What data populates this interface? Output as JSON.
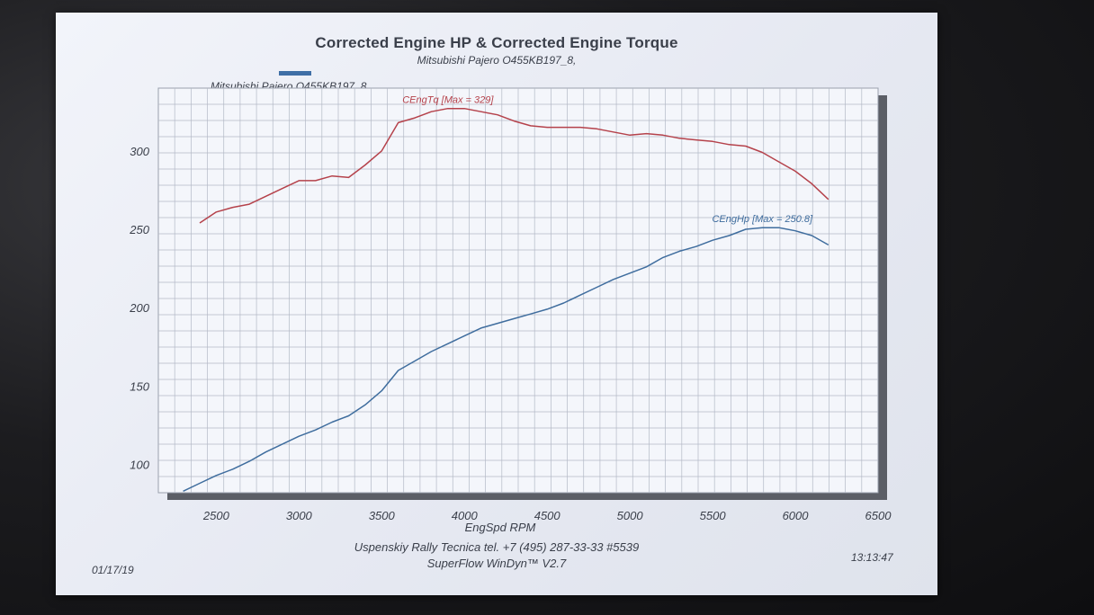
{
  "chart_data": {
    "type": "line",
    "title": "Corrected Engine HP & Corrected Engine Torque",
    "subtitle": "Mitsubishi Pajero O455KB197_8,",
    "legend": [
      {
        "label": "Mitsubishi Pajero O455KB197_8",
        "color": "#3f6fa6"
      }
    ],
    "xlabel": "EngSpd  RPM",
    "xlim": [
      2150,
      6500
    ],
    "ylim": [
      82,
      340
    ],
    "x_ticks": [
      2500,
      3000,
      3500,
      4000,
      4500,
      5000,
      5500,
      6000,
      6500
    ],
    "y_ticks": [
      100,
      150,
      200,
      250,
      300
    ],
    "grid": true,
    "series": [
      {
        "name": "CEngTq",
        "color": "#b5424b",
        "annotation": "CEngTq [Max = 329]",
        "x": [
          2400,
          2500,
          2600,
          2700,
          2800,
          2900,
          3000,
          3100,
          3200,
          3300,
          3400,
          3500,
          3600,
          3700,
          3800,
          3900,
          4000,
          4100,
          4200,
          4300,
          4400,
          4500,
          4600,
          4700,
          4800,
          4900,
          5000,
          5100,
          5200,
          5300,
          5400,
          5500,
          5600,
          5700,
          5800,
          5900,
          6000,
          6100,
          6200
        ],
        "values": [
          254,
          261,
          264,
          266,
          271,
          276,
          281,
          281,
          284,
          283,
          291,
          300,
          318,
          321,
          325,
          327,
          327,
          325,
          323,
          319,
          316,
          315,
          315,
          315,
          314,
          312,
          310,
          311,
          310,
          308,
          307,
          306,
          304,
          303,
          299,
          293,
          287,
          279,
          269
        ]
      },
      {
        "name": "CEngHp",
        "color": "#3f6d9e",
        "annotation": "CEngHp [Max = 250.8]",
        "x": [
          2300,
          2400,
          2500,
          2600,
          2700,
          2800,
          2900,
          3000,
          3100,
          3200,
          3300,
          3400,
          3500,
          3600,
          3700,
          3800,
          3900,
          4000,
          4100,
          4200,
          4300,
          4400,
          4500,
          4600,
          4700,
          4800,
          4900,
          5000,
          5100,
          5200,
          5300,
          5400,
          5500,
          5600,
          5700,
          5800,
          5900,
          6000,
          6100,
          6200
        ],
        "values": [
          83,
          88,
          93,
          97,
          102,
          108,
          113,
          118,
          122,
          127,
          131,
          138,
          147,
          160,
          166,
          172,
          177,
          182,
          187,
          190,
          193,
          196,
          199,
          203,
          208,
          213,
          218,
          222,
          226,
          232,
          236,
          239,
          243,
          246,
          250,
          251,
          251,
          249,
          246,
          240
        ]
      }
    ]
  },
  "footer": {
    "company": "Uspenskiy Rally Tecnica   tel. +7 (495) 287-33-33 #5539",
    "software": "SuperFlow WinDyn™ V2.7",
    "date": "01/17/19",
    "time": "13:13:47"
  }
}
